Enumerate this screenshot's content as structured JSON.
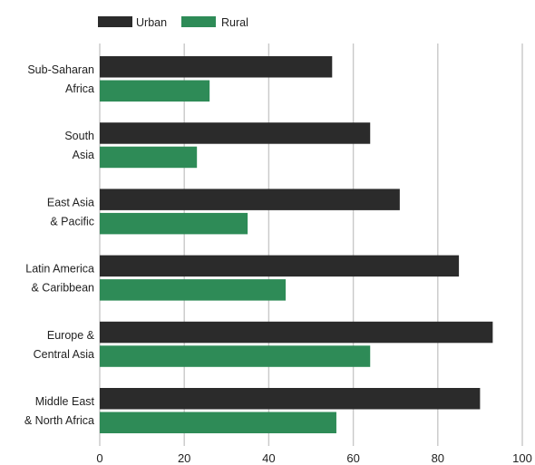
{
  "chart_data": {
    "type": "bar",
    "orientation": "horizontal",
    "categories": [
      [
        "Sub-Saharan",
        "Africa"
      ],
      [
        "South",
        "Asia"
      ],
      [
        "East Asia",
        "& Pacific"
      ],
      [
        "Latin America",
        "& Caribbean"
      ],
      [
        "Europe &",
        "Central Asia"
      ],
      [
        "Middle East",
        "& North Africa"
      ]
    ],
    "series": [
      {
        "name": "Urban",
        "color": "#2b2b2b",
        "values": [
          55,
          64,
          71,
          85,
          93,
          90
        ]
      },
      {
        "name": "Rural",
        "color": "#2e8b57",
        "values": [
          26,
          23,
          35,
          44,
          64,
          56
        ]
      }
    ],
    "xlim": [
      0,
      100
    ],
    "xticks": [
      0,
      20,
      40,
      60,
      80,
      100
    ],
    "grid": "vertical",
    "legend": "top-left",
    "title": "",
    "xlabel": "",
    "ylabel": ""
  }
}
